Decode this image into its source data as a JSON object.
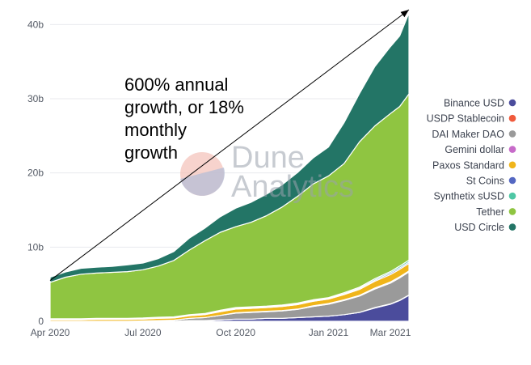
{
  "chart_data": {
    "type": "area",
    "stacked": true,
    "title": "",
    "xlabel": "",
    "ylabel": "",
    "ylim": [
      0,
      42
    ],
    "y_unit": "b",
    "y_ticks": [
      {
        "value": 0,
        "label": "0"
      },
      {
        "value": 10,
        "label": "10b"
      },
      {
        "value": 20,
        "label": "20b"
      },
      {
        "value": 30,
        "label": "30b"
      },
      {
        "value": 40,
        "label": "40b"
      }
    ],
    "x_ticks": [
      {
        "t": 0,
        "label": "Apr 2020"
      },
      {
        "t": 3,
        "label": "Jul 2020"
      },
      {
        "t": 6,
        "label": "Oct 2020"
      },
      {
        "t": 9,
        "label": "Jan 2021"
      },
      {
        "t": 11,
        "label": "Mar 2021"
      }
    ],
    "x_range_months": [
      0,
      11.6
    ],
    "x": [
      0,
      0.5,
      1,
      1.5,
      2,
      2.5,
      3,
      3.5,
      4,
      4.5,
      5,
      5.5,
      6,
      6.5,
      7,
      7.5,
      8,
      8.5,
      9,
      9.5,
      10,
      10.5,
      11,
      11.3,
      11.6
    ],
    "series": [
      {
        "name": "Binance USD",
        "color": "#4b4c9c",
        "values": [
          0,
          0,
          0,
          0,
          0,
          0,
          0,
          0,
          0,
          0.1,
          0.1,
          0.2,
          0.3,
          0.3,
          0.4,
          0.4,
          0.5,
          0.6,
          0.7,
          0.9,
          1.2,
          1.8,
          2.3,
          2.8,
          3.5
        ]
      },
      {
        "name": "USDP Stablecoin",
        "color": "#f05a3c",
        "values": [
          0,
          0,
          0,
          0,
          0,
          0,
          0,
          0,
          0,
          0,
          0,
          0,
          0,
          0,
          0,
          0,
          0,
          0,
          0,
          0,
          0,
          0.05,
          0.05,
          0.05,
          0.05
        ]
      },
      {
        "name": "DAI Maker DAO",
        "color": "#9a9a9a",
        "values": [
          0,
          0,
          0,
          0,
          0,
          0,
          0.05,
          0.1,
          0.15,
          0.3,
          0.4,
          0.6,
          0.8,
          0.9,
          0.9,
          1.0,
          1.1,
          1.4,
          1.6,
          1.9,
          2.2,
          2.5,
          2.8,
          3.0,
          3.1
        ]
      },
      {
        "name": "Gemini dollar",
        "color": "#c76bc9",
        "values": [
          0,
          0,
          0,
          0,
          0,
          0,
          0,
          0,
          0,
          0,
          0,
          0,
          0.05,
          0.05,
          0.05,
          0.05,
          0.05,
          0.1,
          0.1,
          0.1,
          0.1,
          0.15,
          0.15,
          0.15,
          0.15
        ]
      },
      {
        "name": "Paxos Standard",
        "color": "#f0b51b",
        "values": [
          0.2,
          0.2,
          0.2,
          0.25,
          0.25,
          0.25,
          0.25,
          0.3,
          0.3,
          0.35,
          0.4,
          0.5,
          0.5,
          0.5,
          0.5,
          0.55,
          0.6,
          0.6,
          0.6,
          0.7,
          0.8,
          0.9,
          1.0,
          1.0,
          1.0
        ]
      },
      {
        "name": "St Coins",
        "color": "#5467c2",
        "values": [
          0.1,
          0.1,
          0.1,
          0.1,
          0.1,
          0.1,
          0.1,
          0.1,
          0.1,
          0.1,
          0.1,
          0.1,
          0.1,
          0.1,
          0.1,
          0.1,
          0.1,
          0.1,
          0.1,
          0.1,
          0.15,
          0.15,
          0.2,
          0.2,
          0.2
        ]
      },
      {
        "name": "Synthetix sUSD",
        "color": "#4fc7a5",
        "values": [
          0.05,
          0.05,
          0.05,
          0.05,
          0.05,
          0.05,
          0.05,
          0.05,
          0.05,
          0.05,
          0.05,
          0.1,
          0.1,
          0.1,
          0.1,
          0.1,
          0.1,
          0.1,
          0.1,
          0.15,
          0.15,
          0.2,
          0.2,
          0.25,
          0.25
        ]
      },
      {
        "name": "Tether",
        "color": "#8fc541",
        "values": [
          4.9,
          5.6,
          6.0,
          6.1,
          6.2,
          6.3,
          6.5,
          6.9,
          7.6,
          8.7,
          9.8,
          10.5,
          10.9,
          11.4,
          12.2,
          13.2,
          14.4,
          15.6,
          16.4,
          17.4,
          19.6,
          20.6,
          21.3,
          21.5,
          22.4
        ]
      },
      {
        "name": "USD Circle",
        "color": "#237566",
        "values": [
          0.7,
          0.7,
          0.8,
          0.8,
          0.8,
          0.9,
          0.9,
          1.0,
          1.2,
          1.6,
          1.7,
          2.1,
          2.5,
          2.7,
          2.9,
          3.0,
          3.2,
          3.5,
          3.9,
          5.5,
          6.5,
          8.0,
          9.0,
          9.5,
          10.9
        ]
      }
    ],
    "legend_position": "right",
    "annotations": [
      {
        "type": "text",
        "lines": [
          "600% annual",
          "growth, or 18%",
          "monthly",
          "growth"
        ]
      },
      {
        "type": "arrow",
        "from_value": [
          0,
          5.5
        ],
        "to_value": [
          11.6,
          42
        ]
      }
    ],
    "watermark": {
      "line1": "Dune",
      "line2": "Analytics"
    }
  }
}
